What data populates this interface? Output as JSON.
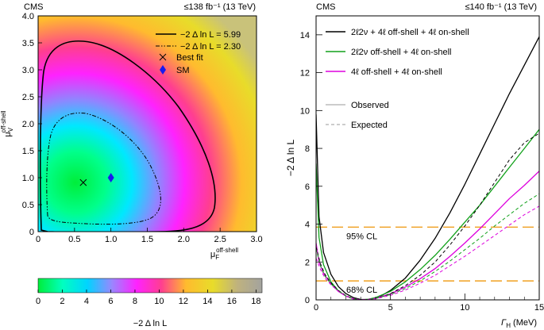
{
  "chart_data": [
    {
      "type": "heatmap",
      "experiment": "CMS",
      "luminosity": "≤138 fb⁻¹ (13 TeV)",
      "xlabel": "μ_F^{off-shell}",
      "ylabel": "μ_V^{off-shell}",
      "xlim": [
        0,
        3.0
      ],
      "ylim": [
        0,
        4.0
      ],
      "xticks": [
        "0",
        "0.5",
        "1.0",
        "1.5",
        "2.0",
        "2.5",
        "3.0"
      ],
      "yticks": [
        "0",
        "0.5",
        "1.0",
        "1.5",
        "2.0",
        "2.5",
        "3.0",
        "3.5",
        "4.0"
      ],
      "best_fit": {
        "x": 0.62,
        "y": 0.91
      },
      "sm_point": {
        "x": 1.0,
        "y": 1.0
      },
      "contours": [
        {
          "label": "−2 Δ ln L = 5.99",
          "level": 5.99,
          "style": "solid"
        },
        {
          "label": "−2 Δ ln L = 2.30",
          "level": 2.3,
          "style": "dash-dot"
        }
      ],
      "legend": {
        "best_fit_label": "Best fit",
        "sm_label": "SM",
        "position": "top-right"
      },
      "colorbar": {
        "label": "−2 Δ ln L",
        "range": [
          0,
          18.5
        ],
        "ticks": [
          "0",
          "2",
          "4",
          "6",
          "8",
          "10",
          "12",
          "14",
          "16",
          "18"
        ],
        "colors": [
          "#00ee3a",
          "#00ffc0",
          "#00d4ff",
          "#9a86ff",
          "#ff22ff",
          "#ff3e90",
          "#ffbb2e",
          "#e8dc2a",
          "#bfb27e",
          "#a3a39f"
        ]
      }
    },
    {
      "type": "line",
      "experiment": "CMS",
      "luminosity": "≤140 fb⁻¹ (13 TeV)",
      "xlabel": "Γ_H (MeV)",
      "ylabel": "−2 Δ ln L",
      "xlim": [
        0,
        15
      ],
      "ylim": [
        0,
        15
      ],
      "xticks": [
        "0",
        "5",
        "10",
        "15"
      ],
      "yticks": [
        "0",
        "2",
        "4",
        "6",
        "8",
        "10",
        "12",
        "14"
      ],
      "series": [
        {
          "name": "2ℓ2ν + 4ℓ off-shell + 4ℓ on-shell",
          "color": "#000000",
          "dashed": false,
          "x": [
            0,
            0.2,
            0.5,
            1.0,
            1.5,
            2.0,
            2.5,
            3.0,
            3.5,
            4.0,
            4.5,
            5.0,
            6.0,
            7.0,
            8.0,
            9.0,
            10.0,
            11.0,
            12.0,
            13.0,
            14.0,
            15.0
          ],
          "y": [
            9.8,
            4.4,
            2.5,
            1.35,
            0.7,
            0.33,
            0.12,
            0.02,
            0.02,
            0.1,
            0.27,
            0.5,
            1.15,
            2.1,
            3.25,
            4.6,
            6.1,
            7.7,
            9.3,
            10.9,
            12.4,
            13.9
          ]
        },
        {
          "name": "2ℓ2ν off-shell + 4ℓ on-shell",
          "color": "#11a11a",
          "dashed": false,
          "x": [
            0,
            0.2,
            0.5,
            1.0,
            1.5,
            2.0,
            2.5,
            3.0,
            3.5,
            4.0,
            5.0,
            6.0,
            7.0,
            8.0,
            9.0,
            10.0,
            11.0,
            12.0,
            13.0,
            14.0,
            15.0
          ],
          "y": [
            7.2,
            3.3,
            1.85,
            0.95,
            0.48,
            0.2,
            0.06,
            0.0,
            0.03,
            0.12,
            0.45,
            0.95,
            1.6,
            2.35,
            3.2,
            4.1,
            5.0,
            6.0,
            7.0,
            8.0,
            9.0
          ]
        },
        {
          "name": "4ℓ off-shell + 4ℓ on-shell",
          "color": "#dd00dd",
          "dashed": false,
          "x": [
            0,
            0.2,
            0.5,
            1.0,
            1.5,
            2.0,
            2.5,
            3.0,
            3.5,
            4.0,
            5.0,
            6.0,
            7.0,
            8.0,
            9.0,
            10.0,
            11.0,
            12.0,
            13.0,
            14.0,
            15.0
          ],
          "y": [
            3.0,
            2.0,
            1.4,
            0.85,
            0.45,
            0.2,
            0.06,
            0.0,
            0.02,
            0.08,
            0.32,
            0.68,
            1.12,
            1.65,
            2.3,
            3.0,
            3.75,
            4.55,
            5.35,
            6.05,
            6.8
          ]
        },
        {
          "name": "",
          "color": "#000000",
          "dashed": true,
          "x": [
            0,
            0.3,
            0.6,
            1.0,
            1.5,
            2.0,
            2.5,
            3.0,
            3.5,
            4.0,
            4.5,
            5.0,
            6.0,
            7.0,
            8.0,
            9.0,
            10.0,
            11.0,
            12.0,
            13.0,
            14.0,
            15.0
          ],
          "y": [
            2.8,
            1.9,
            1.35,
            0.9,
            0.5,
            0.22,
            0.06,
            0.0,
            0.02,
            0.08,
            0.18,
            0.33,
            0.75,
            1.3,
            2.0,
            2.9,
            3.9,
            5.0,
            6.2,
            7.4,
            8.3,
            8.8
          ]
        },
        {
          "name": "",
          "color": "#11a11a",
          "dashed": true,
          "x": [
            0,
            0.3,
            0.6,
            1.0,
            1.5,
            2.0,
            2.5,
            3.0,
            3.5,
            4.0,
            5.0,
            6.0,
            7.0,
            8.0,
            9.0,
            10.0,
            11.0,
            12.0,
            13.0,
            14.0,
            15.0
          ],
          "y": [
            2.7,
            1.8,
            1.25,
            0.85,
            0.48,
            0.2,
            0.05,
            0.0,
            0.02,
            0.07,
            0.28,
            0.6,
            1.0,
            1.5,
            2.05,
            2.65,
            3.25,
            3.9,
            4.5,
            5.1,
            5.6
          ]
        },
        {
          "name": "",
          "color": "#dd00dd",
          "dashed": true,
          "x": [
            0,
            0.3,
            0.6,
            1.0,
            1.5,
            2.0,
            2.5,
            3.0,
            3.5,
            4.0,
            5.0,
            6.0,
            7.0,
            8.0,
            9.0,
            10.0,
            11.0,
            12.0,
            13.0,
            14.0,
            15.0
          ],
          "y": [
            2.2,
            1.6,
            1.15,
            0.8,
            0.45,
            0.2,
            0.05,
            0.0,
            0.02,
            0.06,
            0.24,
            0.52,
            0.88,
            1.3,
            1.8,
            2.3,
            2.85,
            3.4,
            3.95,
            4.5,
            4.95
          ]
        }
      ],
      "style_legend": [
        {
          "label": "Observed",
          "dashed": false
        },
        {
          "label": "Expected",
          "dashed": true
        }
      ],
      "reference_lines": [
        {
          "y": 3.84,
          "label": "95% CL"
        },
        {
          "y": 1.0,
          "label": "68% CL"
        }
      ],
      "reference_color": "#f0a020",
      "legend_position": "top-left"
    }
  ]
}
